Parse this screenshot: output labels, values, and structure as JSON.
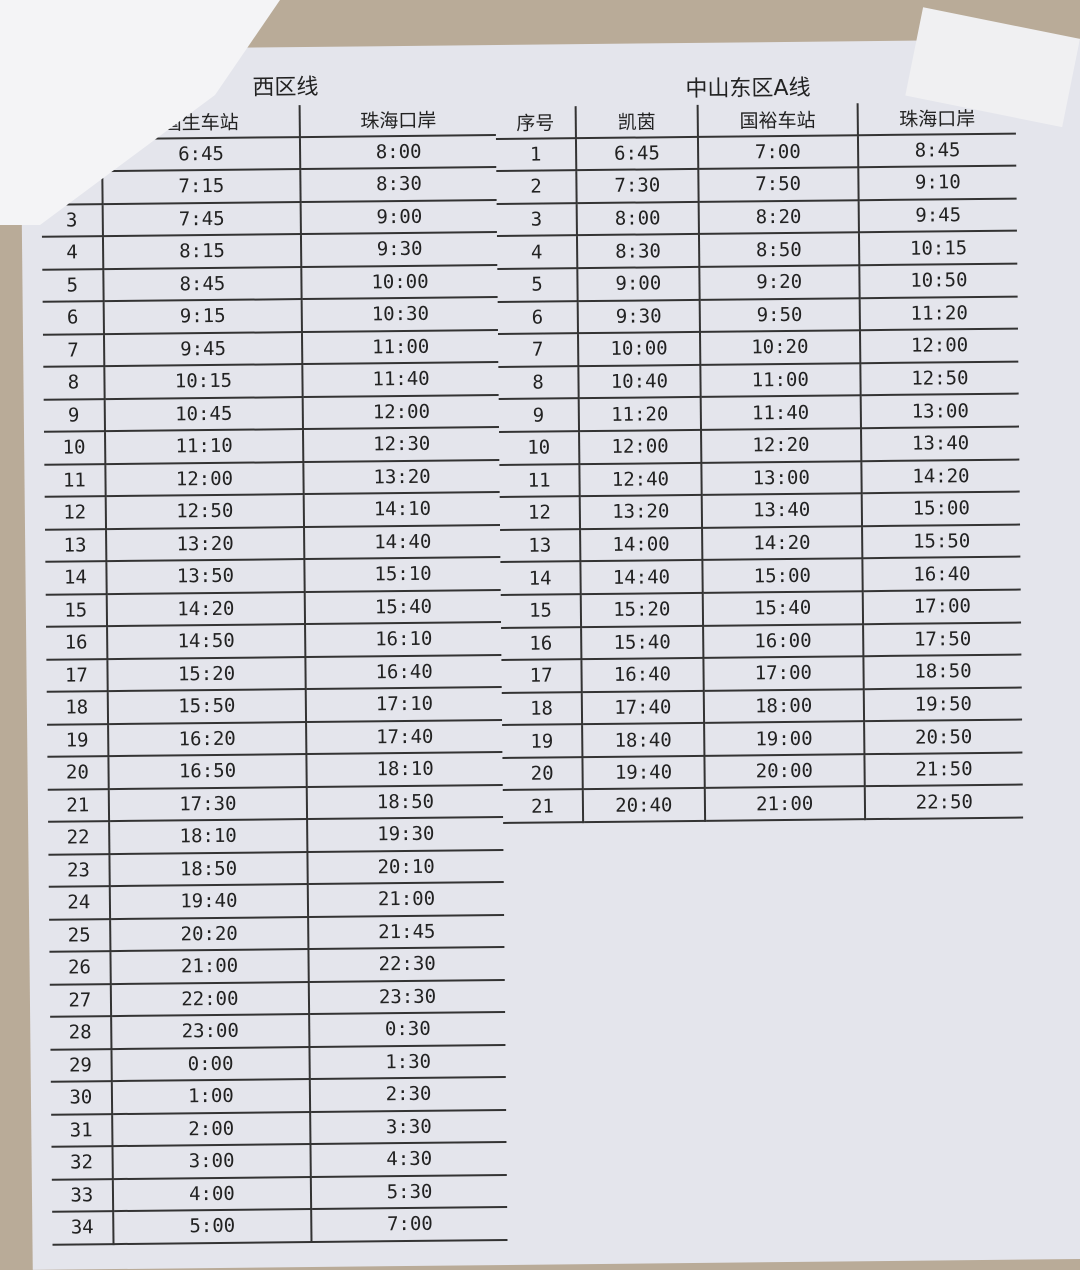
{
  "west": {
    "title": "西区线",
    "headers": [
      "",
      "国生车站",
      "珠海口岸"
    ],
    "rows": [
      [
        "",
        "6:45",
        "8:00"
      ],
      [
        "",
        "7:15",
        "8:30"
      ],
      [
        "3",
        "7:45",
        "9:00"
      ],
      [
        "4",
        "8:15",
        "9:30"
      ],
      [
        "5",
        "8:45",
        "10:00"
      ],
      [
        "6",
        "9:15",
        "10:30"
      ],
      [
        "7",
        "9:45",
        "11:00"
      ],
      [
        "8",
        "10:15",
        "11:40"
      ],
      [
        "9",
        "10:45",
        "12:00"
      ],
      [
        "10",
        "11:10",
        "12:30"
      ],
      [
        "11",
        "12:00",
        "13:20"
      ],
      [
        "12",
        "12:50",
        "14:10"
      ],
      [
        "13",
        "13:20",
        "14:40"
      ],
      [
        "14",
        "13:50",
        "15:10"
      ],
      [
        "15",
        "14:20",
        "15:40"
      ],
      [
        "16",
        "14:50",
        "16:10"
      ],
      [
        "17",
        "15:20",
        "16:40"
      ],
      [
        "18",
        "15:50",
        "17:10"
      ],
      [
        "19",
        "16:20",
        "17:40"
      ],
      [
        "20",
        "16:50",
        "18:10"
      ],
      [
        "21",
        "17:30",
        "18:50"
      ],
      [
        "22",
        "18:10",
        "19:30"
      ],
      [
        "23",
        "18:50",
        "20:10"
      ],
      [
        "24",
        "19:40",
        "21:00"
      ],
      [
        "25",
        "20:20",
        "21:45"
      ],
      [
        "26",
        "21:00",
        "22:30"
      ],
      [
        "27",
        "22:00",
        "23:30"
      ],
      [
        "28",
        "23:00",
        "0:30"
      ],
      [
        "29",
        "0:00",
        "1:30"
      ],
      [
        "30",
        "1:00",
        "2:30"
      ],
      [
        "31",
        "2:00",
        "3:30"
      ],
      [
        "32",
        "3:00",
        "4:30"
      ],
      [
        "33",
        "4:00",
        "5:30"
      ],
      [
        "34",
        "5:00",
        "7:00"
      ]
    ]
  },
  "east": {
    "title": "中山东区A线",
    "headers": [
      "序号",
      "凯茵",
      "国裕车站",
      "珠海口岸"
    ],
    "rows": [
      [
        "1",
        "6:45",
        "7:00",
        "8:45"
      ],
      [
        "2",
        "7:30",
        "7:50",
        "9:10"
      ],
      [
        "3",
        "8:00",
        "8:20",
        "9:45"
      ],
      [
        "4",
        "8:30",
        "8:50",
        "10:15"
      ],
      [
        "5",
        "9:00",
        "9:20",
        "10:50"
      ],
      [
        "6",
        "9:30",
        "9:50",
        "11:20"
      ],
      [
        "7",
        "10:00",
        "10:20",
        "12:00"
      ],
      [
        "8",
        "10:40",
        "11:00",
        "12:50"
      ],
      [
        "9",
        "11:20",
        "11:40",
        "13:00"
      ],
      [
        "10",
        "12:00",
        "12:20",
        "13:40"
      ],
      [
        "11",
        "12:40",
        "13:00",
        "14:20"
      ],
      [
        "12",
        "13:20",
        "13:40",
        "15:00"
      ],
      [
        "13",
        "14:00",
        "14:20",
        "15:50"
      ],
      [
        "14",
        "14:40",
        "15:00",
        "16:40"
      ],
      [
        "15",
        "15:20",
        "15:40",
        "17:00"
      ],
      [
        "16",
        "15:40",
        "16:00",
        "17:50"
      ],
      [
        "17",
        "16:40",
        "17:00",
        "18:50"
      ],
      [
        "18",
        "17:40",
        "18:00",
        "19:50"
      ],
      [
        "19",
        "18:40",
        "19:00",
        "20:50"
      ],
      [
        "20",
        "19:40",
        "20:00",
        "21:50"
      ],
      [
        "21",
        "20:40",
        "21:00",
        "22:50"
      ]
    ]
  }
}
